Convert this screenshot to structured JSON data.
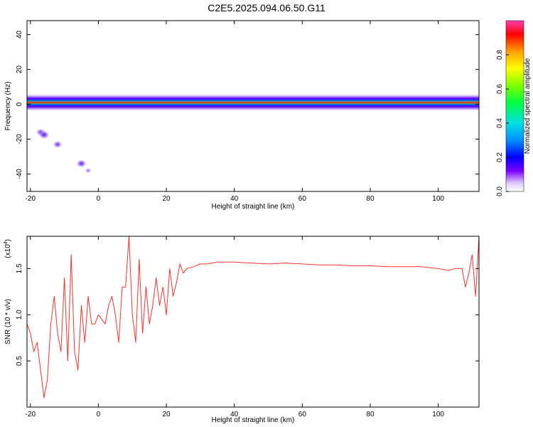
{
  "title": "C2E5.2025.094.06.50.G11",
  "colors": {
    "snr_line": "#ee3333",
    "axis": "#000000"
  },
  "chart_data": [
    {
      "type": "heatmap",
      "xlabel": "Height of straight line (km)",
      "ylabel": "Frequency (Hz)",
      "xlim": [
        -21,
        112
      ],
      "ylim": [
        -50,
        48
      ],
      "xticks": [
        "-20",
        "0",
        "20",
        "40",
        "60",
        "80",
        "100"
      ],
      "xtick_values": [
        -20,
        0,
        20,
        40,
        60,
        80,
        100
      ],
      "yticks": [
        "40",
        "20",
        "0",
        "-20",
        "-40"
      ],
      "ytick_values": [
        40,
        20,
        0,
        -20,
        -40
      ],
      "colorbar": {
        "label": "Normalized spectral amplitude",
        "range": [
          0,
          1
        ],
        "ticks": [
          "0.0",
          "0.2",
          "0.4",
          "0.6",
          "0.8"
        ],
        "tick_values": [
          0.0,
          0.2,
          0.4,
          0.6,
          0.8
        ]
      },
      "main_band": {
        "frequency_hz": 1,
        "x_range": [
          -21,
          112
        ],
        "core_amplitude": 0.95
      },
      "secondary_trace": {
        "points": [
          {
            "x": -17,
            "y": -16,
            "amp": 0.15
          },
          {
            "x": -16,
            "y": -17.5,
            "amp": 0.2
          },
          {
            "x": -12,
            "y": -23,
            "amp": 0.15
          },
          {
            "x": -5,
            "y": -34,
            "amp": 0.18
          },
          {
            "x": -3,
            "y": -38,
            "amp": 0.05
          }
        ]
      }
    },
    {
      "type": "line",
      "xlabel": "Height of straight line (km)",
      "ylabel": "SNR (10 * v/v)",
      "y_exponent": "(x10",
      "y_exponent_power": "4",
      "y_exponent_close": ")",
      "xlim": [
        -21,
        112
      ],
      "ylim": [
        0.0,
        1.85
      ],
      "xticks": [
        "-20",
        "0",
        "20",
        "40",
        "60",
        "80",
        "100"
      ],
      "xtick_values": [
        -20,
        0,
        20,
        40,
        60,
        80,
        100
      ],
      "yticks": [
        "0.5",
        "1.0",
        "1.5"
      ],
      "ytick_values": [
        0.5,
        1.0,
        1.5
      ],
      "series": [
        {
          "x": [
            -21,
            -20,
            -19,
            -18,
            -17,
            -16,
            -15,
            -14,
            -13,
            -12,
            -11,
            -10,
            -9,
            -8,
            -7,
            -6,
            -5,
            -4,
            -3,
            -2,
            -1,
            0,
            1,
            2,
            3,
            4,
            5,
            6,
            7,
            8,
            9,
            10,
            11,
            12,
            13,
            14,
            15,
            16,
            17,
            18,
            19,
            20,
            21,
            22,
            23,
            24,
            25,
            26,
            28,
            30,
            32,
            35,
            40,
            45,
            50,
            55,
            60,
            65,
            70,
            75,
            80,
            85,
            90,
            95,
            100,
            103,
            105,
            107,
            108,
            109,
            110,
            111,
            112
          ],
          "y": [
            0.9,
            0.8,
            0.6,
            0.7,
            0.4,
            0.1,
            0.3,
            0.9,
            1.2,
            0.8,
            0.6,
            1.4,
            0.5,
            1.65,
            0.6,
            0.4,
            1.1,
            0.7,
            1.2,
            0.9,
            0.9,
            1.0,
            0.95,
            0.9,
            1.1,
            1.2,
            1.0,
            0.7,
            1.3,
            1.3,
            1.85,
            1.0,
            0.7,
            1.6,
            0.8,
            1.3,
            0.9,
            1.1,
            1.4,
            1.1,
            1.3,
            1.0,
            1.5,
            1.2,
            1.35,
            1.55,
            1.45,
            1.5,
            1.52,
            1.55,
            1.55,
            1.57,
            1.57,
            1.56,
            1.55,
            1.56,
            1.55,
            1.54,
            1.54,
            1.53,
            1.53,
            1.52,
            1.52,
            1.52,
            1.5,
            1.48,
            1.5,
            1.5,
            1.3,
            1.45,
            1.65,
            1.2,
            1.85
          ]
        }
      ]
    }
  ]
}
